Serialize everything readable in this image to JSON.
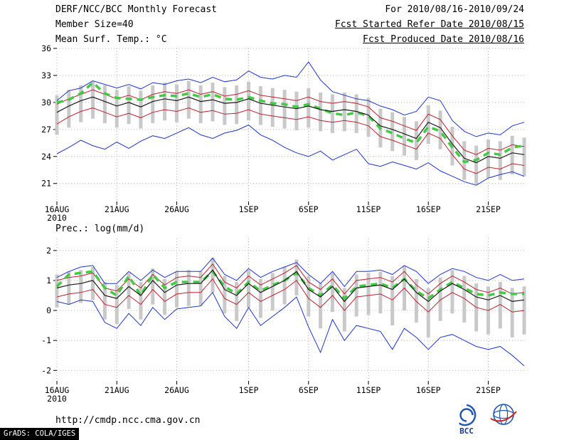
{
  "header": {
    "title": "DERF/NCC/BCC Monthly Forecast",
    "member_size": "Member Size=40",
    "temp_label": "Mean Surf. Temp.: °C",
    "for_range": "For 2010/08/16-2010/09/24",
    "fcst_started": "Fcst Started Refer Date 2010/08/15",
    "fcst_produced": "Fcst Produced Date 2010/08/16"
  },
  "footer": {
    "url": "http://cmdp.ncc.cma.gov.cn",
    "bcc_logo_text": "BCC",
    "grads_credit": "GrADS: COLA/IGES"
  },
  "colors": {
    "grid": "#b5b5b5",
    "bar_gray": "#c9c9c9",
    "line_blue": "#2233cc",
    "line_red": "#bb2233",
    "line_black": "#1a1a1a",
    "green_dash": "#44c944",
    "logo_blue": "#2456b0",
    "logo_red": "#cc2222"
  },
  "chart_data": [
    {
      "type": "line",
      "title": "Mean Surf. Temp.: °C",
      "xlabel": "",
      "ylabel": "",
      "ylim": [
        19,
        36
      ],
      "yticks": [
        21,
        24,
        27,
        30,
        33,
        36
      ],
      "grid": true,
      "legend": "none",
      "n_points": 40,
      "x_start_date": "16AUG2010",
      "x_end_date": "24SEP2010",
      "xtick_indices": [
        0,
        5,
        10,
        16,
        21,
        26,
        31,
        36
      ],
      "xtick_labels": [
        "16AUG",
        "21AUG",
        "26AUG",
        "1SEP",
        "6SEP",
        "11SEP",
        "16SEP",
        "21SEP"
      ],
      "x_year_label": "2010",
      "bars": {
        "name": "member-spread",
        "color": "#c9c9c9",
        "high": [
          30.8,
          31.4,
          31.9,
          32.4,
          31.9,
          31.4,
          31.8,
          31.3,
          31.9,
          32.2,
          32.0,
          32.4,
          31.9,
          32.2,
          31.7,
          31.9,
          32.3,
          31.8,
          31.6,
          31.4,
          31.2,
          31.6,
          31.1,
          30.9,
          31.1,
          30.9,
          30.5,
          29.3,
          28.9,
          28.4,
          27.9,
          29.7,
          29.1,
          27.3,
          25.7,
          25.2,
          25.9,
          25.7,
          26.3,
          26.1
        ],
        "low": [
          26.4,
          27.2,
          27.8,
          28.2,
          27.7,
          27.2,
          27.6,
          27.1,
          27.7,
          28.0,
          27.8,
          28.2,
          27.7,
          27.9,
          27.5,
          27.6,
          28.0,
          27.5,
          27.3,
          27.1,
          26.9,
          27.2,
          26.8,
          26.6,
          26.8,
          26.6,
          26.2,
          25.0,
          24.6,
          24.1,
          23.6,
          25.4,
          24.8,
          23.0,
          21.4,
          20.9,
          21.6,
          21.4,
          22.0,
          21.8
        ]
      },
      "series": [
        {
          "name": "ensemble-max",
          "color": "#2233cc",
          "width": 1,
          "style": "line",
          "values": [
            30.2,
            31.3,
            31.6,
            32.4,
            32.0,
            31.6,
            32.0,
            31.5,
            32.2,
            32.0,
            32.4,
            32.6,
            32.2,
            32.8,
            32.3,
            32.5,
            33.5,
            32.8,
            32.6,
            33.0,
            32.8,
            34.5,
            32.5,
            31.2,
            30.8,
            30.4,
            30.2,
            29.6,
            29.2,
            28.6,
            29.0,
            30.6,
            30.2,
            28.0,
            26.8,
            26.2,
            26.6,
            26.4,
            27.4,
            27.8
          ]
        },
        {
          "name": "ensemble-min",
          "color": "#2233cc",
          "width": 1,
          "style": "line",
          "values": [
            24.3,
            25.0,
            25.8,
            25.2,
            24.8,
            25.6,
            24.9,
            25.7,
            26.3,
            26.0,
            26.6,
            27.2,
            26.4,
            26.0,
            26.6,
            26.9,
            27.5,
            26.4,
            25.8,
            25.0,
            24.4,
            24.0,
            24.6,
            23.6,
            24.2,
            24.8,
            23.2,
            22.9,
            23.4,
            23.0,
            22.6,
            23.3,
            22.4,
            21.8,
            21.2,
            20.8,
            21.6,
            22.0,
            22.3,
            21.8
          ]
        },
        {
          "name": "ensemble-upper",
          "color": "#bb2233",
          "width": 1,
          "style": "line",
          "values": [
            29.8,
            30.4,
            30.9,
            31.4,
            30.9,
            30.4,
            30.8,
            30.3,
            30.9,
            31.2,
            31.0,
            31.4,
            30.9,
            31.2,
            30.7,
            30.9,
            31.3,
            30.8,
            30.6,
            30.4,
            30.2,
            30.6,
            30.1,
            29.9,
            30.1,
            29.9,
            29.5,
            28.3,
            27.9,
            27.4,
            26.9,
            28.7,
            28.1,
            26.3,
            24.7,
            24.2,
            24.9,
            24.7,
            25.3,
            25.1
          ]
        },
        {
          "name": "ensemble-lower",
          "color": "#bb2233",
          "width": 1,
          "style": "line",
          "values": [
            27.6,
            28.4,
            29.0,
            29.4,
            28.9,
            28.4,
            28.8,
            28.3,
            28.9,
            29.2,
            29.0,
            29.4,
            28.9,
            29.1,
            28.7,
            28.8,
            29.2,
            28.7,
            28.5,
            28.3,
            28.1,
            28.4,
            28.0,
            27.8,
            28.0,
            27.8,
            27.4,
            26.2,
            25.8,
            25.3,
            24.8,
            26.6,
            26.0,
            24.2,
            22.6,
            22.1,
            22.8,
            22.6,
            23.2,
            23.0
          ]
        },
        {
          "name": "climatology",
          "color": "#44c944",
          "width": 3.5,
          "style": "thick-dash",
          "values": [
            30.0,
            30.3,
            31.0,
            32.2,
            31.0,
            30.5,
            30.4,
            30.3,
            30.6,
            30.8,
            30.7,
            31.0,
            30.6,
            30.9,
            30.4,
            30.3,
            30.6,
            30.2,
            29.9,
            29.8,
            29.5,
            29.8,
            29.3,
            28.8,
            28.6,
            28.9,
            28.5,
            27.1,
            26.6,
            26.0,
            25.5,
            27.3,
            26.8,
            25.0,
            23.4,
            23.6,
            24.4,
            24.2,
            25.0,
            25.2
          ]
        },
        {
          "name": "ensemble-mean",
          "color": "#1a1a1a",
          "width": 1.2,
          "style": "line",
          "values": [
            28.9,
            29.6,
            30.2,
            30.6,
            30.1,
            29.6,
            30.0,
            29.5,
            30.1,
            30.4,
            30.2,
            30.6,
            30.1,
            30.3,
            29.9,
            30.0,
            30.4,
            29.9,
            29.7,
            29.5,
            29.3,
            29.6,
            29.2,
            29.0,
            29.2,
            29.0,
            28.6,
            27.4,
            27.0,
            26.5,
            26.0,
            27.8,
            27.2,
            25.4,
            23.8,
            23.3,
            24.0,
            23.8,
            24.4,
            24.2
          ]
        }
      ]
    },
    {
      "type": "line",
      "title": "Prec.: log(mm/d)",
      "xlabel": "",
      "ylabel": "",
      "ylim": [
        -2.35,
        2.4
      ],
      "yticks": [
        -2,
        -1,
        0,
        1,
        2
      ],
      "grid": true,
      "legend": "none",
      "n_points": 40,
      "x_start_date": "16AUG2010",
      "x_end_date": "24SEP2010",
      "xtick_indices": [
        0,
        5,
        10,
        16,
        21,
        26,
        31,
        36
      ],
      "xtick_labels": [
        "16AUG",
        "21AUG",
        "26AUG",
        "1SEP",
        "6SEP",
        "11SEP",
        "16SEP",
        "21SEP"
      ],
      "x_year_label": "2010",
      "bars": {
        "name": "member-spread",
        "color": "#c9c9c9",
        "high": [
          1.2,
          1.3,
          1.35,
          1.45,
          0.95,
          0.85,
          1.25,
          0.95,
          1.4,
          1.05,
          1.3,
          1.35,
          1.3,
          1.75,
          1.15,
          0.95,
          1.35,
          1.05,
          1.25,
          1.45,
          1.7,
          1.15,
          0.9,
          1.25,
          0.75,
          1.2,
          1.25,
          1.3,
          1.15,
          1.5,
          1.05,
          0.75,
          1.1,
          1.35,
          1.15,
          0.9,
          0.8,
          0.95,
          0.75,
          0.8
        ],
        "low": [
          0.1,
          0.2,
          0.25,
          0.35,
          -0.3,
          -0.45,
          0.05,
          -0.3,
          0.2,
          -0.15,
          0.1,
          0.15,
          0.15,
          0.6,
          -0.1,
          -0.35,
          0.1,
          -0.25,
          0.0,
          0.2,
          0.5,
          -0.2,
          -0.6,
          -0.05,
          -0.7,
          -0.2,
          -0.15,
          -0.1,
          -0.5,
          0.0,
          -0.4,
          -0.9,
          -0.35,
          -0.1,
          -0.4,
          -0.7,
          -0.8,
          -0.6,
          -0.9,
          -0.8
        ]
      },
      "series": [
        {
          "name": "ensemble-max",
          "color": "#2233cc",
          "width": 1,
          "style": "line",
          "values": [
            1.1,
            1.3,
            1.45,
            1.5,
            0.9,
            0.9,
            1.3,
            1.0,
            1.35,
            1.1,
            1.3,
            1.3,
            1.3,
            1.75,
            1.2,
            1.0,
            1.4,
            1.1,
            1.3,
            1.45,
            1.6,
            1.2,
            0.9,
            1.3,
            0.8,
            1.3,
            1.3,
            1.35,
            1.2,
            1.5,
            1.3,
            0.9,
            1.2,
            1.4,
            1.3,
            1.1,
            1.0,
            1.2,
            1.0,
            1.05
          ]
        },
        {
          "name": "ensemble-min",
          "color": "#2233cc",
          "width": 1,
          "style": "line",
          "values": [
            0.3,
            0.2,
            0.35,
            0.3,
            -0.4,
            -0.6,
            -0.1,
            -0.5,
            0.1,
            -0.3,
            0.05,
            0.1,
            0.15,
            0.6,
            -0.2,
            -0.6,
            0.1,
            -0.5,
            -0.2,
            0.1,
            0.45,
            -0.55,
            -1.4,
            -0.3,
            -1.0,
            -0.5,
            -0.6,
            -0.7,
            -1.3,
            -0.6,
            -0.9,
            -1.3,
            -0.9,
            -0.8,
            -1.0,
            -1.2,
            -1.3,
            -1.2,
            -1.5,
            -1.85
          ]
        },
        {
          "name": "ensemble-upper",
          "color": "#bb2233",
          "width": 1,
          "style": "line",
          "values": [
            1.0,
            1.1,
            1.15,
            1.25,
            0.75,
            0.65,
            1.05,
            0.75,
            1.2,
            0.85,
            1.1,
            1.15,
            1.1,
            1.55,
            0.95,
            0.75,
            1.15,
            0.85,
            1.05,
            1.25,
            1.5,
            0.95,
            0.7,
            1.05,
            0.55,
            1.0,
            1.05,
            1.1,
            0.95,
            1.3,
            0.85,
            0.55,
            0.9,
            1.15,
            0.95,
            0.7,
            0.6,
            0.75,
            0.55,
            0.6
          ]
        },
        {
          "name": "ensemble-lower",
          "color": "#bb2233",
          "width": 1,
          "style": "line",
          "values": [
            0.45,
            0.55,
            0.6,
            0.7,
            0.2,
            0.1,
            0.5,
            0.2,
            0.7,
            0.3,
            0.55,
            0.6,
            0.6,
            1.05,
            0.4,
            0.2,
            0.6,
            0.3,
            0.5,
            0.7,
            1.0,
            0.4,
            0.1,
            0.5,
            0.0,
            0.45,
            0.5,
            0.55,
            0.35,
            0.75,
            0.3,
            -0.05,
            0.35,
            0.6,
            0.4,
            0.1,
            0.0,
            0.2,
            -0.05,
            0.0
          ]
        },
        {
          "name": "climatology",
          "color": "#44c944",
          "width": 3.5,
          "style": "thick-dash",
          "values": [
            0.8,
            1.2,
            1.25,
            1.3,
            0.75,
            0.5,
            1.15,
            0.5,
            1.2,
            0.75,
            0.95,
            0.95,
            0.95,
            1.3,
            0.8,
            0.55,
            0.95,
            0.65,
            0.85,
            1.0,
            1.25,
            0.75,
            0.5,
            0.85,
            0.4,
            0.8,
            0.85,
            0.9,
            0.75,
            1.05,
            0.65,
            0.4,
            0.7,
            0.95,
            0.75,
            0.55,
            0.5,
            0.6,
            0.55,
            0.55
          ]
        },
        {
          "name": "ensemble-mean",
          "color": "#1a1a1a",
          "width": 1.2,
          "style": "line",
          "values": [
            0.75,
            0.85,
            0.9,
            1.0,
            0.5,
            0.4,
            0.8,
            0.5,
            1.0,
            0.6,
            0.85,
            0.9,
            0.9,
            1.35,
            0.7,
            0.5,
            0.9,
            0.6,
            0.8,
            1.0,
            1.3,
            0.7,
            0.45,
            0.8,
            0.3,
            0.75,
            0.8,
            0.85,
            0.7,
            1.05,
            0.6,
            0.3,
            0.65,
            0.9,
            0.7,
            0.45,
            0.35,
            0.5,
            0.3,
            0.35
          ]
        }
      ]
    }
  ]
}
